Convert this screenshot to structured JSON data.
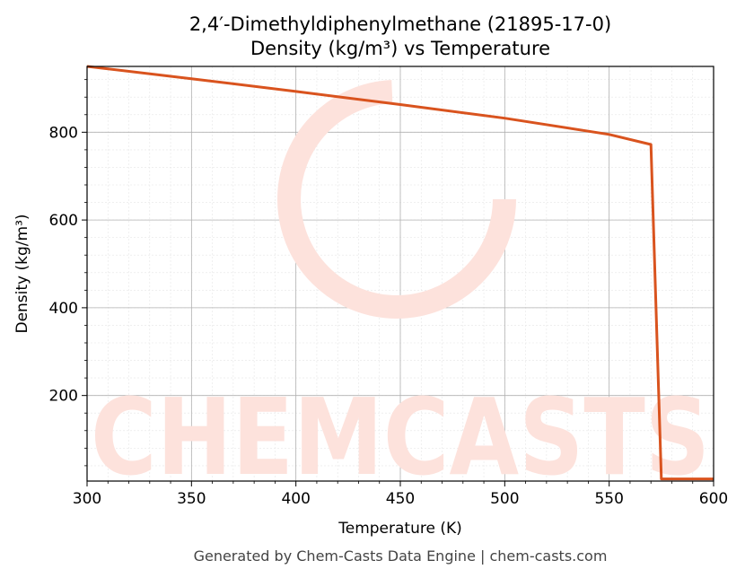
{
  "chart_data": {
    "type": "line",
    "title": "2,4′-Dimethyldiphenylmethane (21895-17-0)",
    "subtitle": "Density (kg/m³) vs Temperature",
    "xlabel": "Temperature (K)",
    "ylabel": "Density (kg/m³)",
    "xlim": [
      300,
      600
    ],
    "ylim": [
      5,
      950
    ],
    "xticks": [
      300,
      350,
      400,
      450,
      500,
      550,
      600
    ],
    "yticks": [
      200,
      400,
      600,
      800
    ],
    "grid": true,
    "series": [
      {
        "color": "#d9531e",
        "x": [
          300,
          350,
          400,
          450,
          500,
          550,
          570,
          575,
          600
        ],
        "y": [
          950,
          922,
          893,
          863,
          832,
          795,
          772,
          10,
          10
        ]
      }
    ]
  },
  "footer": "Generated by Chem-Casts Data Engine | chem-casts.com",
  "watermark": "CHEMCASTS",
  "colors": {
    "line": "#d9531e",
    "watermark": "#fde2dc"
  }
}
